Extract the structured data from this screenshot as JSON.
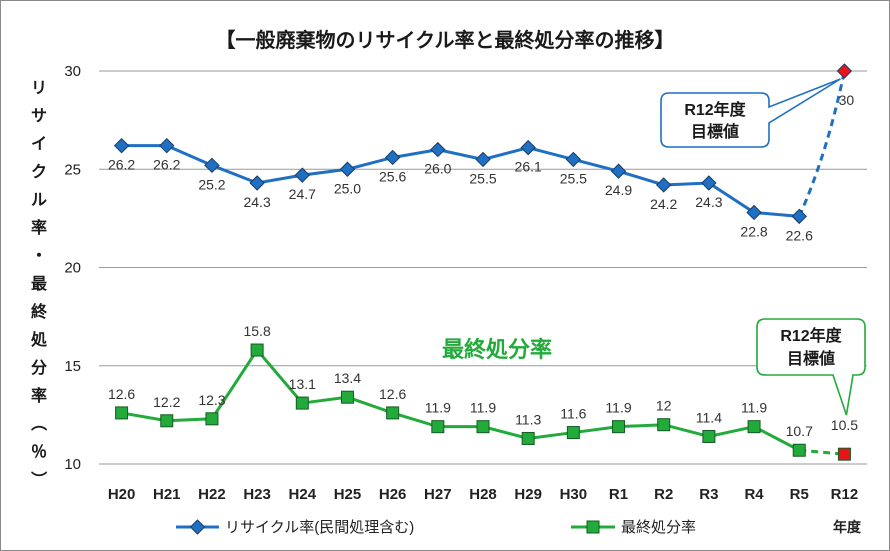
{
  "chart_data": {
    "type": "line",
    "title": "【一般廃棄物のリサイクル率と最終処分率の推移】",
    "ylabel": "リサイクル率・最終処分率（％）",
    "xlabel": "年度",
    "ylim": [
      10,
      30
    ],
    "yticks": [
      10,
      15,
      20,
      25,
      30
    ],
    "categories": [
      "H20",
      "H21",
      "H22",
      "H23",
      "H24",
      "H25",
      "H26",
      "H27",
      "H28",
      "H29",
      "H30",
      "R1",
      "R2",
      "R3",
      "R4",
      "R5",
      "R12"
    ],
    "series": [
      {
        "name": "リサイクル率(民間処理含む)",
        "color": "#1f6fc2",
        "marker": "diamond",
        "values": [
          26.2,
          26.2,
          25.2,
          24.3,
          24.7,
          25.0,
          25.6,
          26.0,
          25.5,
          26.1,
          25.5,
          24.9,
          24.2,
          24.3,
          22.8,
          22.6,
          30
        ],
        "labels": [
          "26.2",
          "26.2",
          "25.2",
          "24.3",
          "24.7",
          "25.0",
          "25.6",
          "26.0",
          "25.5",
          "26.1",
          "25.5",
          "24.9",
          "24.2",
          "24.3",
          "22.8",
          "22.6",
          "30"
        ],
        "target_color": "#e8141b"
      },
      {
        "name": "最終処分率",
        "color": "#22aa3a",
        "marker": "square",
        "values": [
          12.6,
          12.2,
          12.3,
          15.8,
          13.1,
          13.4,
          12.6,
          11.9,
          11.9,
          11.3,
          11.6,
          11.9,
          12,
          11.4,
          11.9,
          10.7,
          10.5
        ],
        "labels": [
          "12.6",
          "12.2",
          "12.3",
          "15.8",
          "13.1",
          "13.4",
          "12.6",
          "11.9",
          "11.9",
          "11.3",
          "11.6",
          "11.9",
          "12",
          "11.4",
          "11.9",
          "10.7",
          "10.5"
        ],
        "target_color": "#e8141b"
      }
    ],
    "annotations": {
      "series_label": "最終処分率",
      "recycle_callout": [
        "R12年度",
        "目標値"
      ],
      "disposal_callout": [
        "R12年度",
        "目標値"
      ]
    },
    "legend_position": "bottom"
  }
}
